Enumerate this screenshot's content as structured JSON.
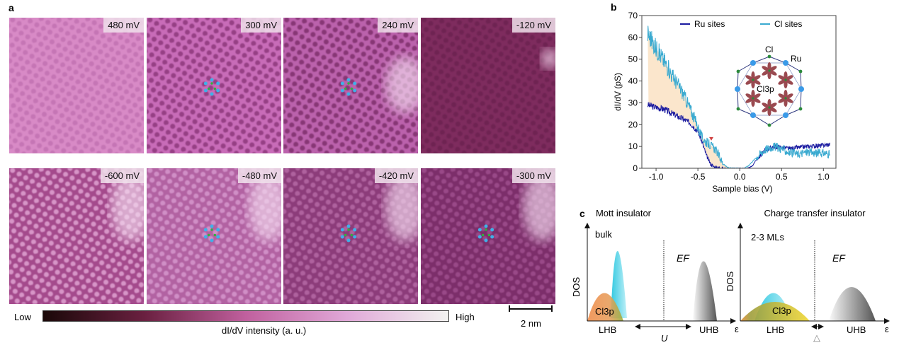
{
  "panel_labels": {
    "a": "a",
    "b": "b",
    "c": "c"
  },
  "panel_a": {
    "images": [
      {
        "label": "480 mV",
        "color": "#d88ac6",
        "dot": "#c070b0",
        "patch": false,
        "overlay": false
      },
      {
        "label": "300 mV",
        "color": "#c86cb8",
        "dot": "#8a3478",
        "patch": false,
        "overlay": true
      },
      {
        "label": "240 mV",
        "color": "#bb62ac",
        "dot": "#7a2a68",
        "patch": true,
        "overlay": true
      },
      {
        "label": "-120 mV",
        "color": "#7e2c5e",
        "dot": "#6a2050",
        "patch": true,
        "overlay": false
      },
      {
        "label": "-600 mV",
        "color": "#a44a8c",
        "dot": "#e3a8d6",
        "patch": true,
        "overlay": false
      },
      {
        "label": "-480 mV",
        "color": "#b262a2",
        "dot": "#d89ad0",
        "patch": true,
        "overlay": true
      },
      {
        "label": "-420 mV",
        "color": "#8c3c7a",
        "dot": "#b86aa8",
        "patch": true,
        "overlay": true
      },
      {
        "label": "-300 mV",
        "color": "#7c2e6a",
        "dot": "#a0508e",
        "patch": true,
        "overlay": true
      }
    ],
    "colorbar": {
      "low": "Low",
      "high": "High",
      "label": "dI/dV  intensity (a. u.)",
      "colors": [
        "#1a0808",
        "#6a2040",
        "#c0609e",
        "#e0a8d8",
        "#f2f2f0"
      ]
    },
    "scalebar": "2 nm"
  },
  "chart_data": {
    "type": "line",
    "xlabel": "Sample bias (V)",
    "ylabel": "dI/dV (pS)",
    "xlim": [
      -1.17,
      1.15
    ],
    "ylim": [
      0,
      70
    ],
    "xticks": [
      "-1.0",
      "-0.5",
      "0.0",
      "0.5",
      "1.0"
    ],
    "xtick_values": [
      -1.0,
      -0.5,
      0.0,
      0.5,
      1.0
    ],
    "yticks": [
      "0",
      "10",
      "20",
      "30",
      "40",
      "50",
      "60",
      "70"
    ],
    "ytick_values": [
      0,
      10,
      20,
      30,
      40,
      50,
      60,
      70
    ],
    "legend_placement": "top",
    "fill_between_color": "#fbe6cc",
    "marker_color": "#d04040",
    "marker_x": -0.34,
    "series": [
      {
        "name": "Ru sites",
        "color": "#1a1aa0",
        "x": [
          -1.1,
          -1.0,
          -0.9,
          -0.8,
          -0.7,
          -0.6,
          -0.5,
          -0.45,
          -0.4,
          -0.35,
          -0.3,
          -0.2,
          0.1,
          0.15,
          0.2,
          0.3,
          0.4,
          0.5,
          0.6,
          0.7,
          0.8,
          0.9,
          1.0,
          1.08
        ],
        "y": [
          29,
          28,
          27,
          25,
          23,
          21,
          17,
          12,
          6,
          2,
          0.5,
          0,
          0,
          1,
          4,
          8,
          10,
          9.5,
          9,
          9.5,
          10,
          10.2,
          10.5,
          11
        ]
      },
      {
        "name": "Cl sites",
        "color": "#3aaad0",
        "x": [
          -1.1,
          -1.0,
          -0.9,
          -0.8,
          -0.7,
          -0.6,
          -0.5,
          -0.45,
          -0.4,
          -0.3,
          -0.25,
          -0.2,
          -0.15,
          -0.1,
          0.05,
          0.1,
          0.2,
          0.3,
          0.4,
          0.5,
          0.6,
          0.7,
          0.8,
          0.9,
          1.0,
          1.08
        ],
        "y": [
          62,
          55,
          49,
          42,
          36,
          28,
          19,
          14,
          12,
          9,
          6,
          2,
          0.5,
          0,
          0,
          1,
          5,
          8.5,
          10,
          9,
          7,
          6.5,
          7.5,
          7,
          7,
          6.5
        ]
      }
    ],
    "inset": {
      "cl_label": "Cl",
      "ru_label": "Ru",
      "orbital_label": "Cl3p",
      "ru_color": "#3a9ae8",
      "cl_color": "#2a8a3a",
      "orbital_color": "#9a4a50"
    }
  },
  "panel_c": {
    "mott": {
      "title": "Mott insulator",
      "sample": "bulk",
      "ylabel": "DOS",
      "ef": "EF",
      "lhb": "LHB",
      "uhb": "UHB",
      "gap": "U",
      "orbital": "Cl3p",
      "axis": "ε"
    },
    "ct": {
      "title": "Charge transfer insulator",
      "sample": "2-3 MLs",
      "ylabel": "DOS",
      "ef": "EF",
      "lhb": "LHB",
      "uhb": "UHB",
      "gap": "△",
      "orbital": "Cl3p",
      "axis": "ε"
    }
  }
}
